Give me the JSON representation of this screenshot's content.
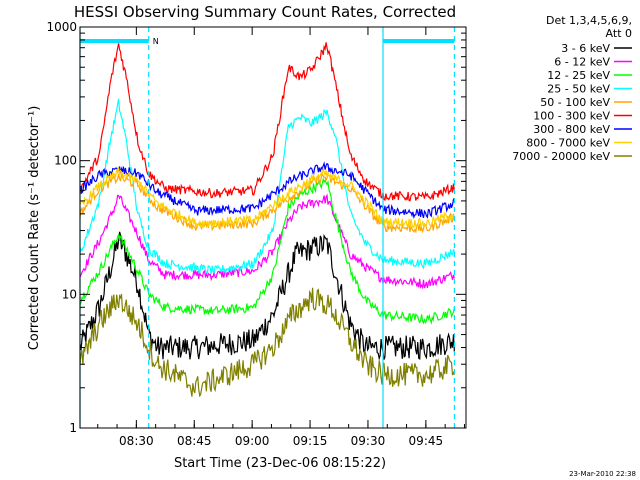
{
  "chart_data": {
    "type": "line",
    "title": "HESSI Observing Summary Count Rates, Corrected",
    "ylabel": "Corrected Count Rate (s⁻¹ detector⁻¹)",
    "xlabel": "Start Time (23-Dec-06 08:15:22)",
    "yscale": "log",
    "ylim": [
      1,
      1000
    ],
    "xlim_minutes": [
      0,
      100
    ],
    "x_tick_labels": [
      "08:30",
      "08:45",
      "09:00",
      "09:15",
      "09:30",
      "09:45"
    ],
    "x_tick_minutes": [
      14.6,
      29.6,
      44.6,
      59.6,
      74.6,
      89.6
    ],
    "y_tick_labels": [
      "1",
      "10",
      "100",
      "1000"
    ],
    "y_tick_values": [
      1,
      10,
      100,
      1000
    ],
    "legend_header": "Det 1,3,4,5,6,9,",
    "legend_header2": "Att 0",
    "legend_position": "right",
    "timestamp": "23-Mar-2010 22:38",
    "night_label": "N",
    "night_intervals_minutes": [
      [
        0,
        17.8
      ],
      [
        78.5,
        97
      ]
    ],
    "saa_boundaries_minutes": [
      0,
      17.8,
      78.5,
      97
    ],
    "series": [
      {
        "name": "3 - 6 keV",
        "color": "#000000",
        "points": [
          [
            0,
            4
          ],
          [
            5,
            8
          ],
          [
            9,
            20
          ],
          [
            10,
            26
          ],
          [
            12,
            20
          ],
          [
            15,
            12
          ],
          [
            17.8,
            5
          ],
          [
            20,
            4
          ],
          [
            30,
            4
          ],
          [
            45,
            4.5
          ],
          [
            50,
            7
          ],
          [
            53,
            12
          ],
          [
            56,
            20
          ],
          [
            60,
            22
          ],
          [
            64,
            24
          ],
          [
            66,
            15
          ],
          [
            70,
            6
          ],
          [
            74,
            4
          ],
          [
            78.5,
            4
          ],
          [
            90,
            4
          ],
          [
            97,
            4.5
          ]
        ]
      },
      {
        "name": "6 - 12 keV",
        "color": "#ff00ff",
        "points": [
          [
            0,
            14
          ],
          [
            5,
            25
          ],
          [
            9,
            45
          ],
          [
            10,
            55
          ],
          [
            12,
            42
          ],
          [
            15,
            28
          ],
          [
            17.8,
            18
          ],
          [
            22,
            14
          ],
          [
            35,
            14
          ],
          [
            45,
            15
          ],
          [
            50,
            21
          ],
          [
            54,
            35
          ],
          [
            57,
            45
          ],
          [
            60,
            48
          ],
          [
            64,
            52
          ],
          [
            66,
            38
          ],
          [
            70,
            20
          ],
          [
            74,
            16
          ],
          [
            78.5,
            13
          ],
          [
            90,
            12
          ],
          [
            97,
            14
          ]
        ]
      },
      {
        "name": "12 - 25 keV",
        "color": "#00ff00",
        "points": [
          [
            0,
            9
          ],
          [
            5,
            15
          ],
          [
            9,
            25
          ],
          [
            10,
            28
          ],
          [
            12,
            22
          ],
          [
            15,
            15
          ],
          [
            17.8,
            10
          ],
          [
            22,
            8
          ],
          [
            35,
            7.5
          ],
          [
            45,
            8
          ],
          [
            50,
            14
          ],
          [
            54,
            45
          ],
          [
            57,
            55
          ],
          [
            60,
            62
          ],
          [
            64,
            70
          ],
          [
            66,
            40
          ],
          [
            70,
            15
          ],
          [
            74,
            9
          ],
          [
            78.5,
            7
          ],
          [
            90,
            6.5
          ],
          [
            97,
            7.5
          ]
        ]
      },
      {
        "name": "25 - 50 keV",
        "color": "#00ffff",
        "points": [
          [
            0,
            20
          ],
          [
            5,
            50
          ],
          [
            8,
            150
          ],
          [
            10,
            270
          ],
          [
            12,
            140
          ],
          [
            15,
            40
          ],
          [
            17.8,
            22
          ],
          [
            22,
            17
          ],
          [
            35,
            15
          ],
          [
            45,
            17
          ],
          [
            50,
            30
          ],
          [
            54,
            180
          ],
          [
            57,
            210
          ],
          [
            60,
            190
          ],
          [
            64,
            230
          ],
          [
            66,
            160
          ],
          [
            70,
            40
          ],
          [
            74,
            24
          ],
          [
            78.5,
            18
          ],
          [
            90,
            17
          ],
          [
            97,
            21
          ]
        ]
      },
      {
        "name": "50 - 100 keV",
        "color": "#ffa500",
        "points": [
          [
            0,
            40
          ],
          [
            5,
            62
          ],
          [
            10,
            75
          ],
          [
            15,
            66
          ],
          [
            20,
            45
          ],
          [
            30,
            32
          ],
          [
            45,
            34
          ],
          [
            55,
            55
          ],
          [
            63,
            76
          ],
          [
            70,
            62
          ],
          [
            75,
            42
          ],
          [
            78.5,
            32
          ],
          [
            90,
            31
          ],
          [
            97,
            38
          ]
        ]
      },
      {
        "name": "100 - 300 keV",
        "color": "#ff0000",
        "points": [
          [
            0,
            60
          ],
          [
            5,
            110
          ],
          [
            8,
            400
          ],
          [
            10,
            740
          ],
          [
            12,
            420
          ],
          [
            15,
            140
          ],
          [
            17.8,
            80
          ],
          [
            22,
            62
          ],
          [
            35,
            57
          ],
          [
            45,
            60
          ],
          [
            50,
            110
          ],
          [
            54,
            500
          ],
          [
            57,
            420
          ],
          [
            60,
            480
          ],
          [
            64,
            740
          ],
          [
            66,
            400
          ],
          [
            70,
            110
          ],
          [
            74,
            70
          ],
          [
            78.5,
            55
          ],
          [
            90,
            53
          ],
          [
            97,
            63
          ]
        ]
      },
      {
        "name": "300 - 800 keV",
        "color": "#0000ff",
        "points": [
          [
            0,
            60
          ],
          [
            5,
            78
          ],
          [
            10,
            85
          ],
          [
            15,
            80
          ],
          [
            20,
            58
          ],
          [
            30,
            42
          ],
          [
            45,
            44
          ],
          [
            55,
            72
          ],
          [
            63,
            90
          ],
          [
            70,
            78
          ],
          [
            75,
            55
          ],
          [
            78.5,
            43
          ],
          [
            90,
            40
          ],
          [
            97,
            48
          ]
        ]
      },
      {
        "name": "800 - 7000 keV",
        "color": "#ffd000",
        "points": [
          [
            0,
            45
          ],
          [
            5,
            65
          ],
          [
            10,
            82
          ],
          [
            15,
            70
          ],
          [
            20,
            48
          ],
          [
            30,
            34
          ],
          [
            45,
            36
          ],
          [
            55,
            60
          ],
          [
            63,
            80
          ],
          [
            70,
            66
          ],
          [
            75,
            46
          ],
          [
            78.5,
            35
          ],
          [
            90,
            34
          ],
          [
            97,
            40
          ]
        ]
      },
      {
        "name": "7000 - 20000 keV",
        "color": "#808000",
        "points": [
          [
            0,
            3
          ],
          [
            5,
            6
          ],
          [
            10,
            9.5
          ],
          [
            15,
            6
          ],
          [
            17.8,
            4
          ],
          [
            20,
            3
          ],
          [
            30,
            2
          ],
          [
            45,
            3
          ],
          [
            50,
            4
          ],
          [
            55,
            7
          ],
          [
            60,
            9.5
          ],
          [
            65,
            8
          ],
          [
            70,
            4.5
          ],
          [
            74,
            3
          ],
          [
            78.5,
            2.5
          ],
          [
            90,
            2.5
          ],
          [
            97,
            3
          ]
        ]
      }
    ]
  }
}
